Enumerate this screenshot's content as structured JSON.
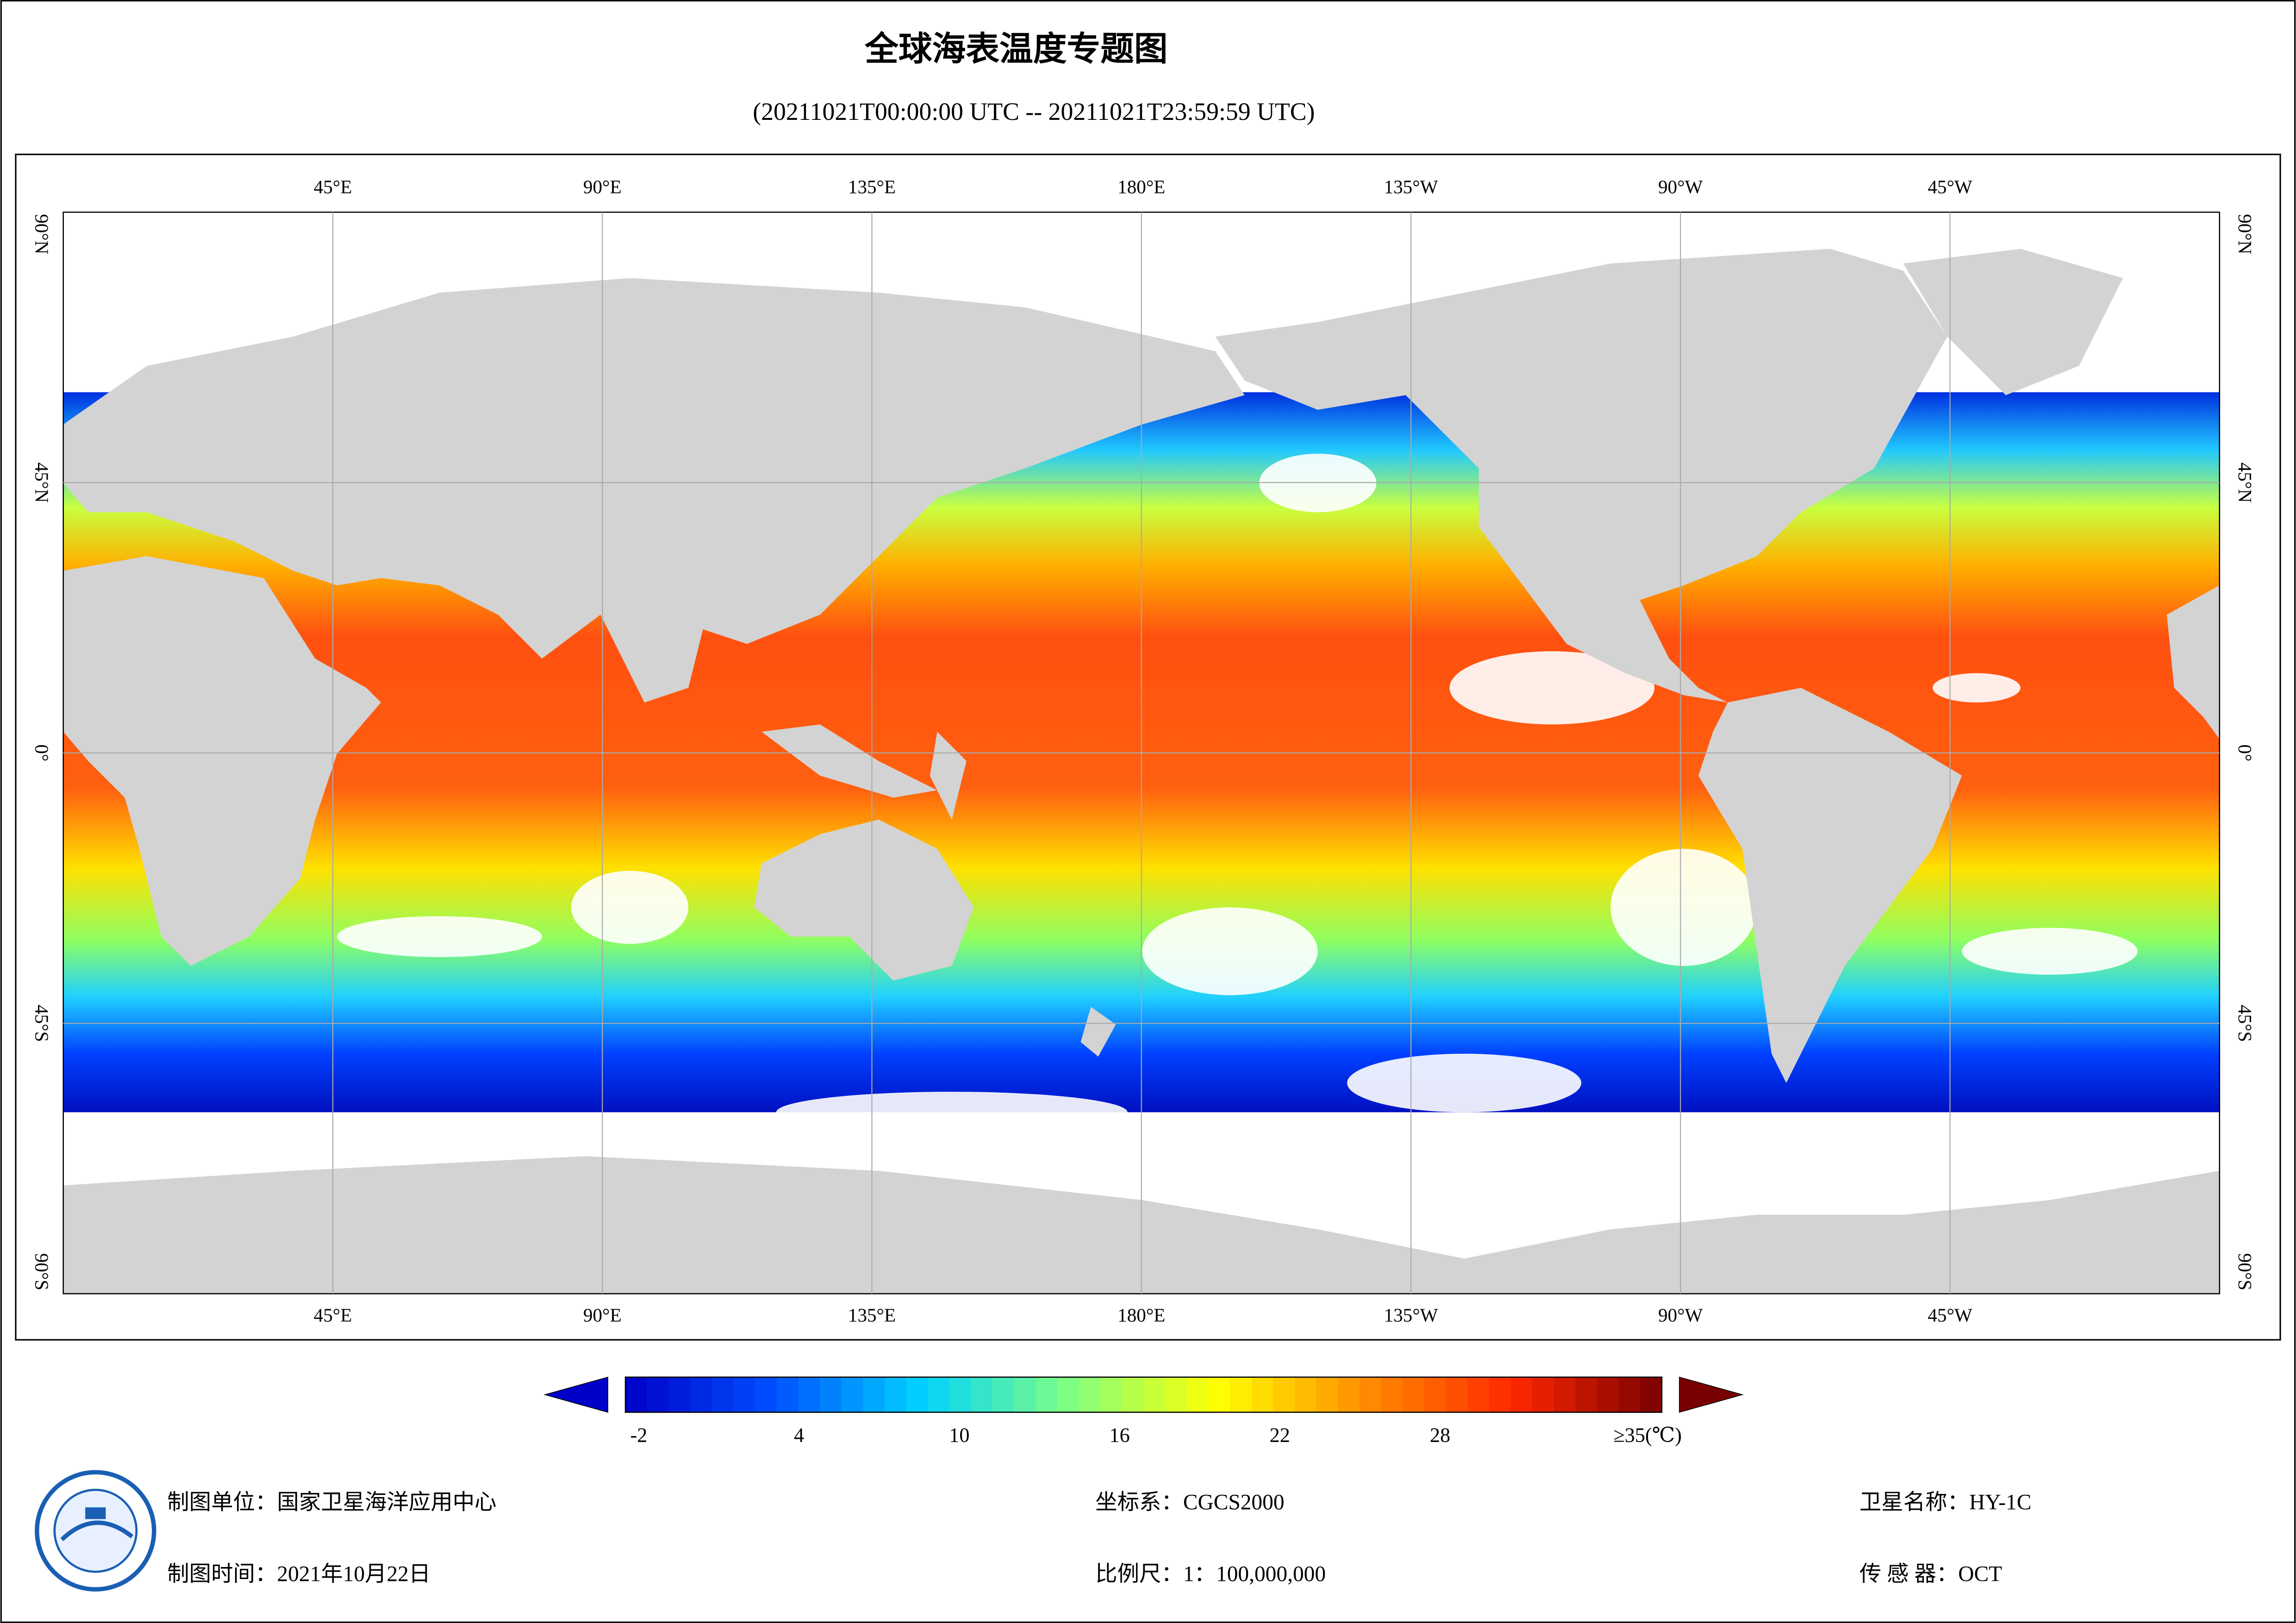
{
  "title": "全球海表温度专题图",
  "subtitle": "(20211021T00:00:00 UTC -- 20211021T23:59:59 UTC)",
  "map": {
    "lon_labels": [
      "45°E",
      "90°E",
      "135°E",
      "180°E",
      "135°W",
      "90°W",
      "45°W"
    ],
    "lat_labels": [
      "90°N",
      "45°N",
      "0°",
      "45°S",
      "90°S"
    ]
  },
  "colorbar": {
    "lim": [
      -2.5,
      36.3
    ],
    "ticks": [
      -2,
      4,
      10,
      16,
      22,
      28,
      {
        "value": 35,
        "label": "≥35(℃)"
      }
    ],
    "colors": [
      "#0000c8",
      "#0050ff",
      "#00d2ff",
      "#80ff80",
      "#ffff00",
      "#ff8c00",
      "#ff2800",
      "#780000"
    ]
  },
  "footer": {
    "unit": "制图单位：国家卫星海洋应用中心",
    "date": "制图时间：2021年10月22日",
    "crs": "坐标系：CGCS2000",
    "scale": "比例尺：1：100,000,000",
    "satellite": "卫星名称：HY-1C",
    "sensor": "传 感 器：OCT"
  }
}
